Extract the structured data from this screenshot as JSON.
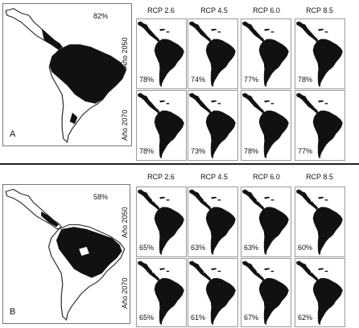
{
  "figure": {
    "column_headers": [
      "RCP 2.6",
      "RCP 4.5",
      "RCP 6.0",
      "RCP 8.5"
    ],
    "row_headers": [
      "Año 2050",
      "Año 2070"
    ],
    "panels": [
      {
        "letter": "A",
        "baseline_percent": "82%",
        "cells": [
          [
            "78%",
            "74%",
            "77%",
            "78%"
          ],
          [
            "78%",
            "73%",
            "78%",
            "77%"
          ]
        ]
      },
      {
        "letter": "B",
        "baseline_percent": "58%",
        "cells": [
          [
            "65%",
            "63%",
            "63%",
            "60%"
          ],
          [
            "65%",
            "61%",
            "67%",
            "62%"
          ]
        ]
      }
    ]
  }
}
